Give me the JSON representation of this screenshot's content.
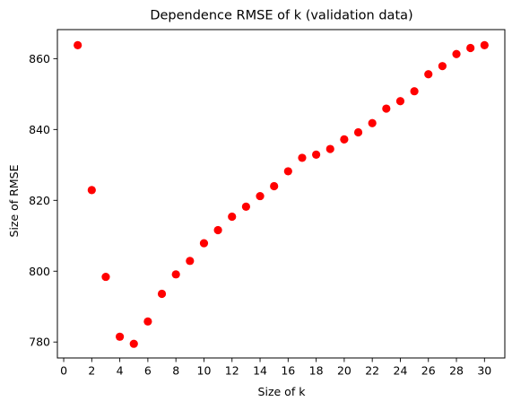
{
  "chart_data": {
    "type": "scatter",
    "title": "Dependence RMSE of k (validation data)",
    "xlabel": "Size of k",
    "ylabel": "Size of RMSE",
    "xlim": [
      -0.45,
      31.45
    ],
    "ylim": [
      775.5,
      868.2
    ],
    "xticks": [
      0,
      2,
      4,
      6,
      8,
      10,
      12,
      14,
      16,
      18,
      20,
      22,
      24,
      26,
      28,
      30
    ],
    "yticks": [
      780,
      800,
      820,
      840,
      860
    ],
    "grid": false,
    "marker_color": "#ff0000",
    "series": [
      {
        "x": [
          1,
          2,
          3,
          4,
          5,
          6,
          7,
          8,
          9,
          10,
          11,
          12,
          13,
          14,
          15,
          16,
          17,
          18,
          19,
          20,
          21,
          22,
          23,
          24,
          25,
          26,
          27,
          28,
          29,
          30
        ],
        "y": [
          863.8,
          822.9,
          798.4,
          781.5,
          779.5,
          785.8,
          793.6,
          799.1,
          802.9,
          807.9,
          811.6,
          815.4,
          818.2,
          821.2,
          824.0,
          828.2,
          832.0,
          832.9,
          834.5,
          837.2,
          839.2,
          841.8,
          845.9,
          848.0,
          850.8,
          855.6,
          857.9,
          861.3,
          863.0,
          863.8
        ]
      }
    ]
  }
}
